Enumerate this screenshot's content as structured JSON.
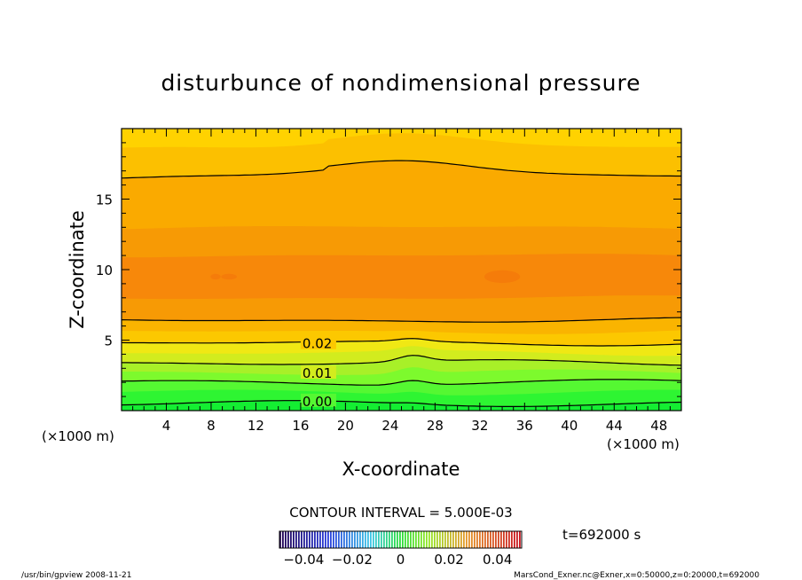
{
  "chart_data": {
    "type": "heatmap",
    "title": "disturbunce of nondimensional pressure",
    "xlabel": "X-coordinate",
    "ylabel": "Z-coordinate",
    "x_unit_left": "(×1000 m)",
    "x_unit_right": "(×1000 m)",
    "xlim": [
      0,
      50
    ],
    "ylim": [
      0,
      20
    ],
    "x_ticks": [
      4,
      8,
      12,
      16,
      20,
      24,
      28,
      32,
      36,
      40,
      44,
      48
    ],
    "y_ticks": [
      5,
      10,
      15
    ],
    "contour_labels": [
      {
        "text": "0.02",
        "x": 16,
        "z": 4.8
      },
      {
        "text": "0.01",
        "x": 16,
        "z": 2.7
      },
      {
        "text": "0.00",
        "x": 16,
        "z": 0.7
      }
    ],
    "contour_interval_label": "CONTOUR INTERVAL = 5.000E-03",
    "time_label": "t=692000 s",
    "colorbar": {
      "range": [
        -0.05,
        0.05
      ],
      "ticks": [
        "−0.04",
        "−0.02",
        "0",
        "0.02",
        "0.04"
      ],
      "tick_values": [
        -0.04,
        -0.02,
        0,
        0.02,
        0.04
      ]
    },
    "footer_left": "/usr/bin/gpview   2008-11-21",
    "footer_right": "MarsCond_Exner.nc@Exner,x=0:50000,z=0:20000,t=692000"
  }
}
